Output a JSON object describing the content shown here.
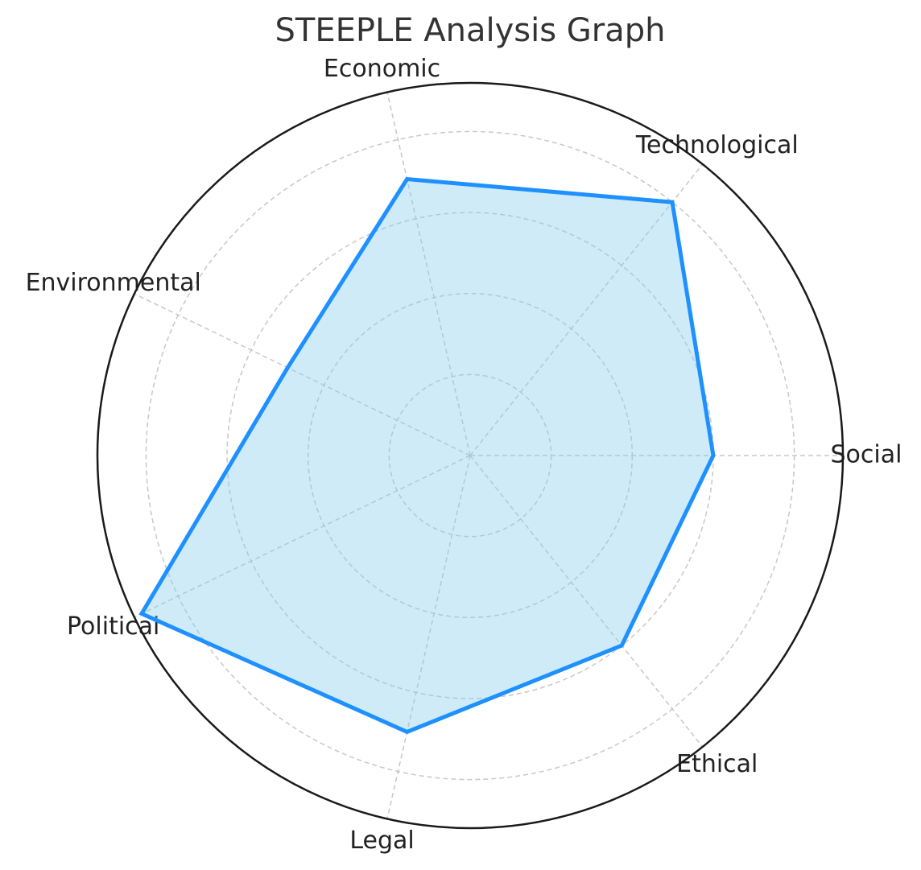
{
  "chart_data": {
    "type": "radar",
    "title": "STEEPLE Analysis Graph",
    "categories": [
      "Social",
      "Technological",
      "Economic",
      "Environmental",
      "Political",
      "Legal",
      "Ethical"
    ],
    "values": [
      3,
      4,
      3.5,
      2.5,
      4.5,
      3.5,
      3
    ],
    "color": "#1e90ff",
    "fill_color": "#87ceeb",
    "ylim": [
      0,
      4.6
    ],
    "yticks": [
      1,
      2,
      3,
      4
    ],
    "grid": true
  }
}
